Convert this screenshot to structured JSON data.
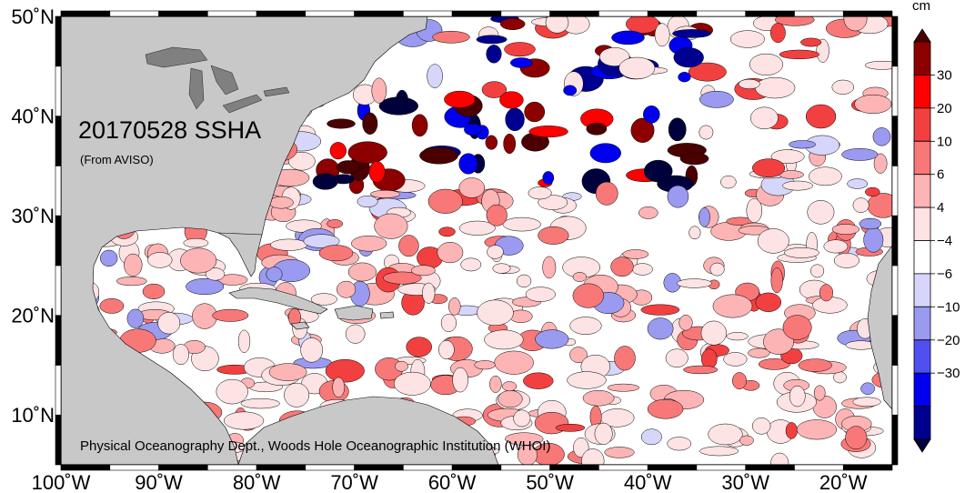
{
  "map": {
    "title": "20170528 SSHA",
    "subtitle": "(From AVISO)",
    "credit": "Physical Oceanography Dept., Woods Hole Oceanographic Institution (WHOI)",
    "lon_range": [
      -100,
      -15
    ],
    "lat_range": [
      5,
      50
    ],
    "lon_ticks": [
      "100˚W",
      "90˚W",
      "80˚W",
      "70˚W",
      "60˚W",
      "50˚W",
      "40˚W",
      "30˚W",
      "20˚W"
    ],
    "lat_ticks": [
      "50˚N",
      "40˚N",
      "30˚N",
      "20˚N",
      "10˚N"
    ],
    "colors": {
      "land": "#c8c8c8",
      "lakes": "#808080",
      "ocean_neutral": "#ffffff"
    }
  },
  "colorbar": {
    "units": "cm",
    "tick_labels": [
      "30",
      "20",
      "10",
      "6",
      "4",
      "−4",
      "−6",
      "−10",
      "−20",
      "−30"
    ],
    "bands": [
      {
        "color": "#4a0000"
      },
      {
        "color": "#8c0000"
      },
      {
        "color": "#ff0000"
      },
      {
        "color": "#f24040"
      },
      {
        "color": "#f87878"
      },
      {
        "color": "#fcb4b4"
      },
      {
        "color": "#fde3e3"
      },
      {
        "color": "#ffffff"
      },
      {
        "color": "#d6d6fa"
      },
      {
        "color": "#9a9af0"
      },
      {
        "color": "#5050f0"
      },
      {
        "color": "#0000ee"
      },
      {
        "color": "#000090"
      },
      {
        "color": "#00003c"
      }
    ]
  }
}
